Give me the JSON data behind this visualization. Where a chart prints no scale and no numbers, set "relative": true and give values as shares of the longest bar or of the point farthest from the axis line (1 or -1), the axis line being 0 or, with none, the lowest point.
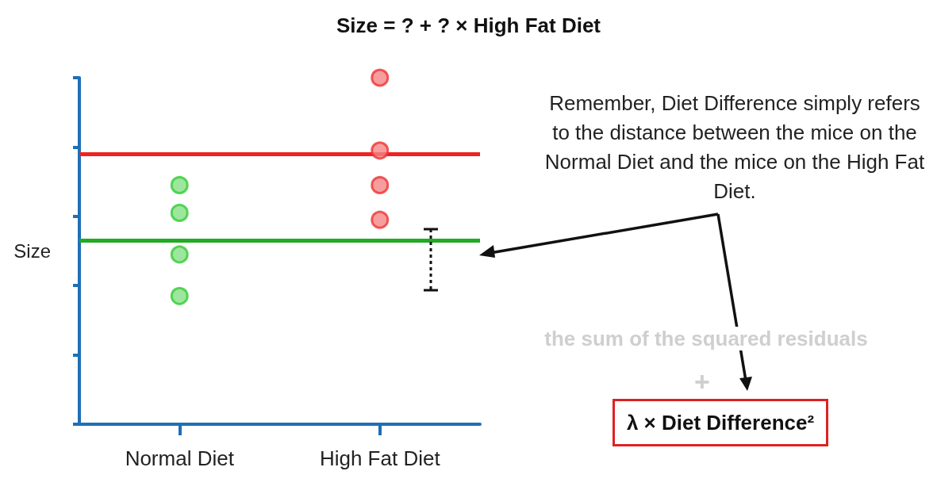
{
  "chart_data": {
    "type": "scatter",
    "title": "Size = ? + ? × High Fat Diet",
    "ylabel": "Size",
    "categories": [
      "Normal Diet",
      "High Fat Diet"
    ],
    "relative": true,
    "marker": "circle",
    "grid": false,
    "series": [
      {
        "color": "#33cc33",
        "x": [
          "Normal Diet",
          "Normal Diet",
          "Normal Diet",
          "Normal Diet"
        ],
        "values": [
          0.69,
          0.61,
          0.49,
          0.37
        ]
      },
      {
        "color": "#ee3333",
        "x": [
          "High Fat Diet",
          "High Fat Diet",
          "High Fat Diet",
          "High Fat Diet"
        ],
        "values": [
          1,
          0.79,
          0.69,
          0.59
        ]
      }
    ],
    "ref_lines": [
      {
        "axis": "y",
        "value": 0.53,
        "color": "#22aa22"
      },
      {
        "axis": "y",
        "value": 0.78,
        "color": "#ee2222"
      }
    ],
    "annotations": [
      "Remember, Diet Difference simply refers to the distance between the mice on the Normal Diet and the mice on the High Fat Diet.",
      "the sum of the squared residuals",
      "+",
      "λ × Diet Difference²"
    ]
  }
}
